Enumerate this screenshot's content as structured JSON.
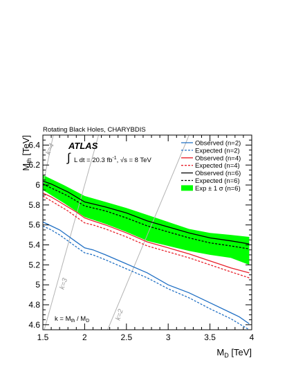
{
  "chart_data": {
    "type": "line",
    "title": "Rotating Black Holes, CHARYBDIS",
    "experiment_label": "ATLAS",
    "luminosity_label": "∫ L dt = 20.3 fb⁻¹, √s = 8 TeV",
    "k_definition": "k = Mth / MD",
    "xlabel": "MD [TeV]",
    "ylabel": "Mth [TeV]",
    "xlim": [
      1.5,
      4.0
    ],
    "ylim": [
      4.55,
      6.5
    ],
    "xticks": [
      "1.5",
      "2",
      "2.5",
      "3",
      "3.5",
      "4"
    ],
    "yticks": [
      "4.6",
      "4.8",
      "5",
      "5.2",
      "5.4",
      "5.6",
      "5.8",
      "6",
      "6.2",
      "6.4"
    ],
    "grid": false,
    "legend_position": "top-right",
    "band": {
      "name": "Exp ± 1 σ (n=6)",
      "color": "#00ff00",
      "x": [
        1.5,
        1.75,
        2.0,
        2.25,
        2.5,
        2.75,
        3.0,
        3.25,
        3.5,
        3.75,
        3.97
      ],
      "low": [
        5.95,
        5.82,
        5.68,
        5.61,
        5.53,
        5.44,
        5.39,
        5.34,
        5.3,
        5.27,
        5.2
      ],
      "high": [
        6.1,
        6.0,
        5.89,
        5.83,
        5.77,
        5.7,
        5.63,
        5.56,
        5.52,
        5.5,
        5.48
      ]
    },
    "series": [
      {
        "name": "Observed (n=2)",
        "color": "#1f6fc4",
        "dash": false,
        "x": [
          1.5,
          1.6,
          1.7,
          1.8,
          1.9,
          2.0,
          2.1,
          2.25,
          2.5,
          2.75,
          3.0,
          3.25,
          3.5,
          3.75,
          3.85,
          3.97
        ],
        "y": [
          5.63,
          5.59,
          5.55,
          5.49,
          5.43,
          5.37,
          5.35,
          5.3,
          5.21,
          5.12,
          5.0,
          4.92,
          4.82,
          4.72,
          4.68,
          4.61
        ]
      },
      {
        "name": "Expected (n=2)",
        "color": "#1f6fc4",
        "dash": true,
        "x": [
          1.5,
          1.6,
          1.7,
          1.8,
          1.9,
          2.0,
          2.1,
          2.25,
          2.5,
          2.75,
          3.0,
          3.25,
          3.5,
          3.75,
          3.85,
          3.97
        ],
        "y": [
          5.59,
          5.55,
          5.5,
          5.44,
          5.38,
          5.32,
          5.3,
          5.25,
          5.16,
          5.07,
          4.96,
          4.87,
          4.76,
          4.66,
          4.61,
          4.55
        ]
      },
      {
        "name": "Observed (n=4)",
        "color": "#e8202a",
        "dash": false,
        "x": [
          1.5,
          1.6,
          1.7,
          1.8,
          1.9,
          2.0,
          2.1,
          2.25,
          2.5,
          2.75,
          3.0,
          3.25,
          3.5,
          3.75,
          3.97
        ],
        "y": [
          5.92,
          5.88,
          5.83,
          5.78,
          5.73,
          5.67,
          5.64,
          5.6,
          5.52,
          5.43,
          5.37,
          5.31,
          5.24,
          5.17,
          5.12
        ]
      },
      {
        "name": "Expected (n=4)",
        "color": "#e8202a",
        "dash": true,
        "x": [
          1.5,
          1.6,
          1.7,
          1.8,
          1.9,
          2.0,
          2.1,
          2.25,
          2.5,
          2.75,
          3.0,
          3.25,
          3.5,
          3.75,
          3.97
        ],
        "y": [
          5.89,
          5.84,
          5.79,
          5.74,
          5.68,
          5.62,
          5.6,
          5.56,
          5.48,
          5.39,
          5.33,
          5.27,
          5.2,
          5.13,
          5.07
        ]
      },
      {
        "name": "Observed (n=6)",
        "color": "#000000",
        "dash": false,
        "x": [
          1.5,
          1.6,
          1.7,
          1.8,
          1.9,
          2.0,
          2.1,
          2.25,
          2.5,
          2.75,
          3.0,
          3.25,
          3.5,
          3.75,
          3.97
        ],
        "y": [
          6.04,
          6.01,
          5.97,
          5.93,
          5.88,
          5.83,
          5.81,
          5.78,
          5.72,
          5.64,
          5.58,
          5.52,
          5.47,
          5.44,
          5.41
        ]
      },
      {
        "name": "Expected (n=6)",
        "color": "#000000",
        "dash": true,
        "x": [
          1.5,
          1.6,
          1.7,
          1.8,
          1.9,
          2.0,
          2.1,
          2.25,
          2.5,
          2.75,
          3.0,
          3.25,
          3.5,
          3.75,
          3.97
        ],
        "y": [
          6.01,
          5.97,
          5.93,
          5.89,
          5.84,
          5.79,
          5.77,
          5.74,
          5.67,
          5.59,
          5.53,
          5.47,
          5.42,
          5.39,
          5.36
        ]
      }
    ],
    "k_lines": [
      {
        "label": "k=4",
        "k": 4
      },
      {
        "label": "k=3",
        "k": 3
      },
      {
        "label": "k=2",
        "k": 2
      }
    ]
  }
}
